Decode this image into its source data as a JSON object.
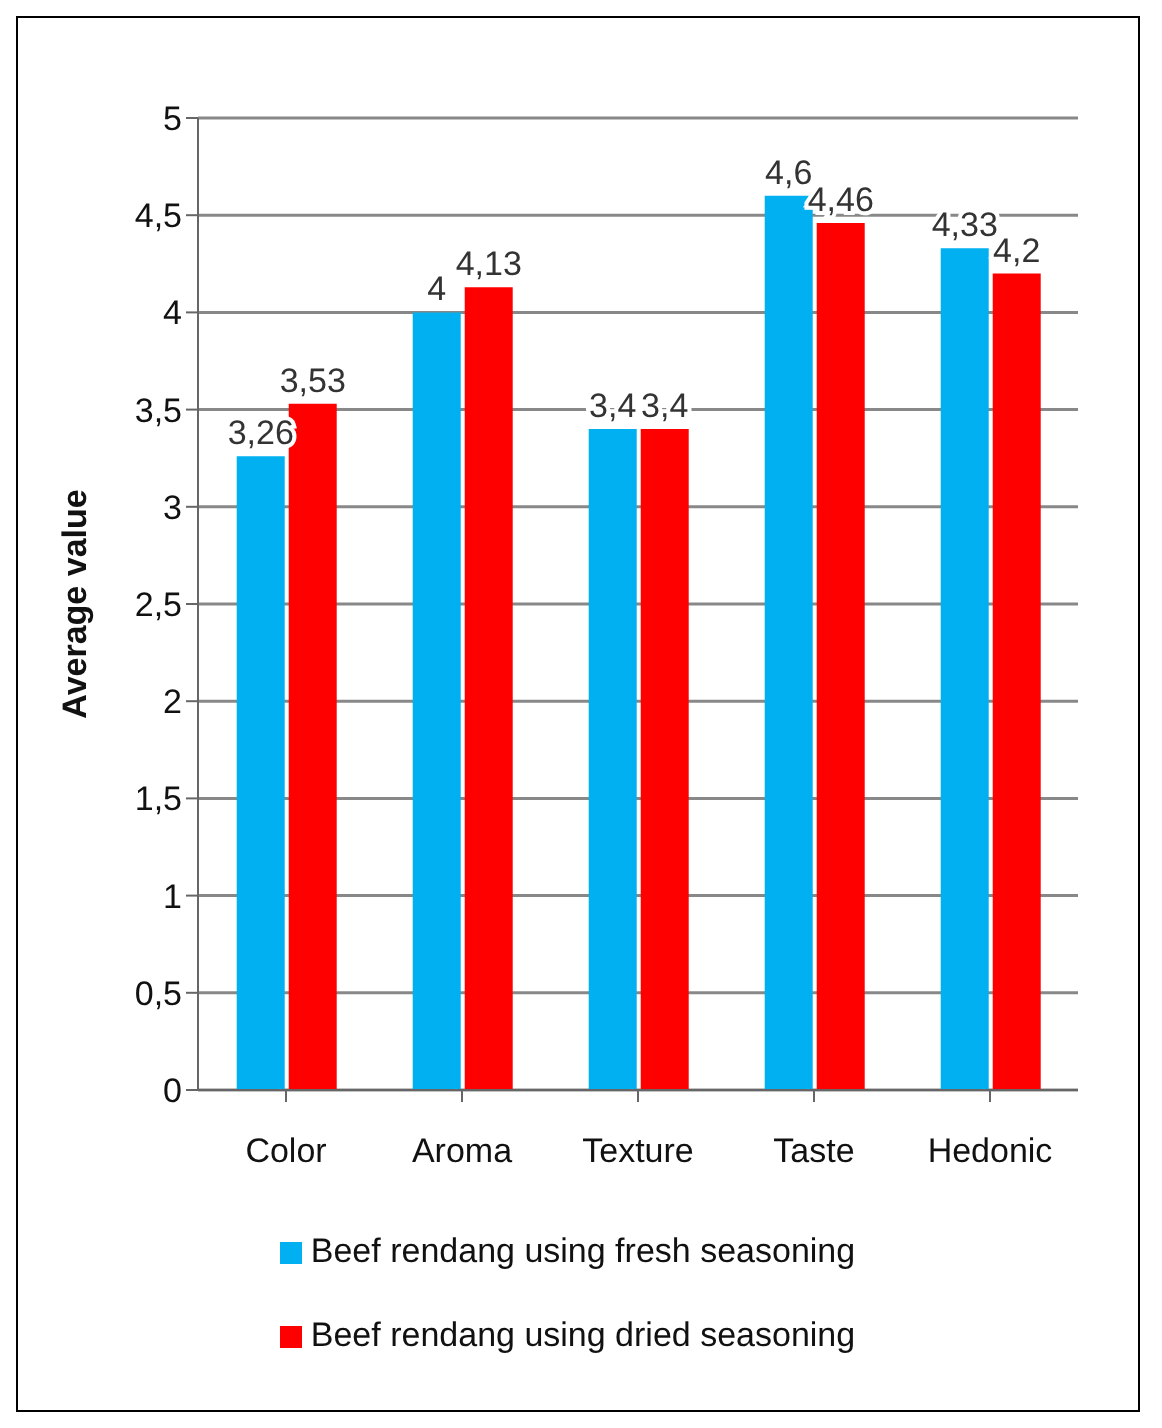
{
  "chart_data": {
    "type": "bar",
    "ylabel": "Average value",
    "categories": [
      "Color",
      "Aroma",
      "Texture",
      "Taste",
      "Hedonic"
    ],
    "series": [
      {
        "name": "Beef rendang using fresh seasoning",
        "color": "#00b0f0",
        "values": [
          3.26,
          4,
          3.4,
          4.6,
          4.33
        ],
        "value_labels": [
          "3,26",
          "4",
          "3,4",
          "4,6",
          "4,33"
        ]
      },
      {
        "name": "Beef rendang using dried seasoning",
        "color": "#ff0000",
        "values": [
          3.53,
          4.13,
          3.4,
          4.46,
          4.2
        ],
        "value_labels": [
          "3,53",
          "4,13",
          "3,4",
          "4,46",
          "4,2"
        ]
      }
    ],
    "ylim": [
      0,
      5
    ],
    "yticks": [
      0,
      {
        "value": 0.5,
        "label": "0,5"
      },
      1,
      {
        "value": 1.5,
        "label": "1,5"
      },
      2,
      {
        "value": 2.5,
        "label": "2,5"
      },
      3,
      {
        "value": 3.5,
        "label": "3,5"
      },
      4,
      {
        "value": 4.5,
        "label": "4,5"
      },
      5
    ],
    "grid": "y",
    "legend": "bottom"
  }
}
